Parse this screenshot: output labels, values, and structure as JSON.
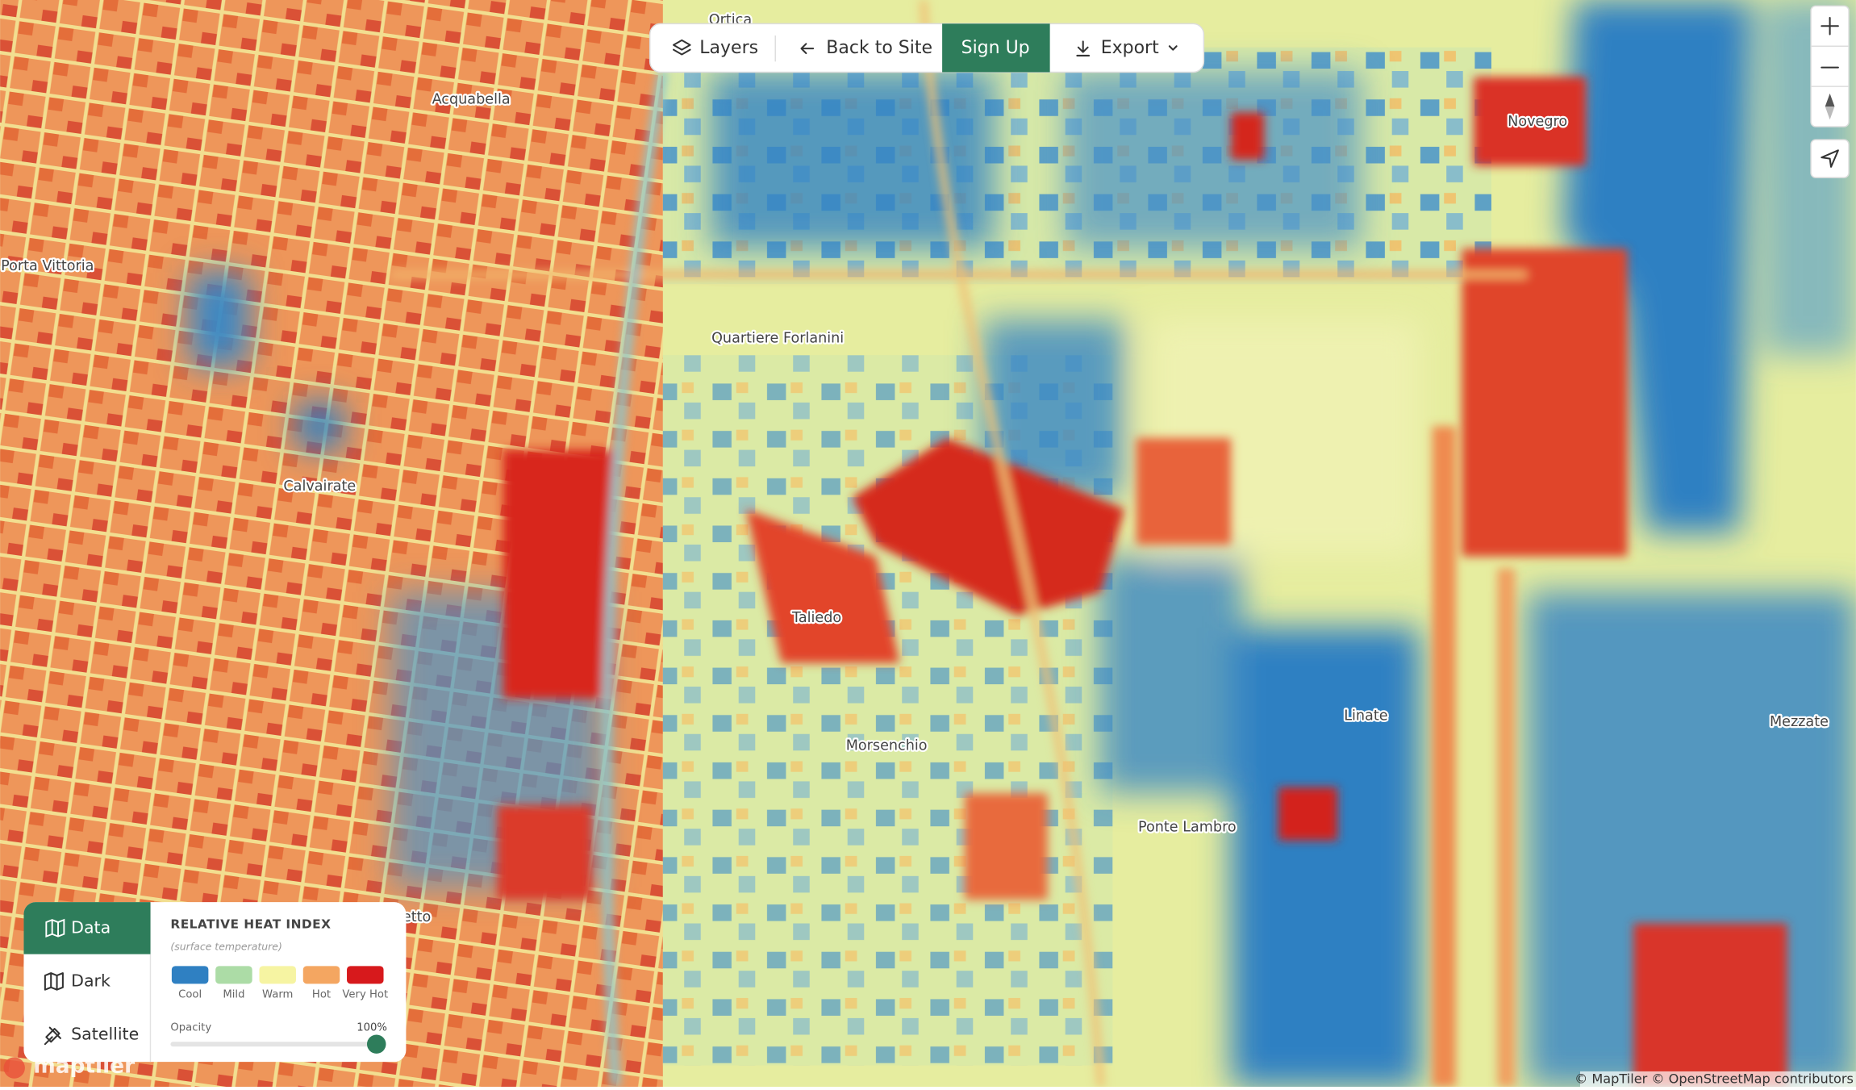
{
  "toolbar": {
    "layers": "Layers",
    "back": "Back to Site",
    "signup": "Sign Up",
    "export": "Export"
  },
  "places": [
    "Ortica",
    "Acquabella",
    "Novegro",
    "Porta Vittoria",
    "Quartiere Forlanini",
    "Calvairate",
    "Taliedo",
    "Linate",
    "Mezzate",
    "Morsenchio",
    "Ponte Lambro",
    "etto"
  ],
  "basemaps": [
    "Data",
    "Dark",
    "Satellite"
  ],
  "legend": {
    "title": "RELATIVE HEAT INDEX",
    "subtitle": "(surface temperature)",
    "items": [
      {
        "label": "Cool",
        "color": "#2f80c2"
      },
      {
        "label": "Mild",
        "color": "#acdca6"
      },
      {
        "label": "Warm",
        "color": "#f6f4a2"
      },
      {
        "label": "Hot",
        "color": "#f4a661"
      },
      {
        "label": "Very Hot",
        "color": "#d7191c"
      }
    ],
    "opacity_label": "Opacity",
    "opacity_value": "100%"
  },
  "logo": "maptiler",
  "attribution": "© MapTiler © OpenStreetMap contributors"
}
